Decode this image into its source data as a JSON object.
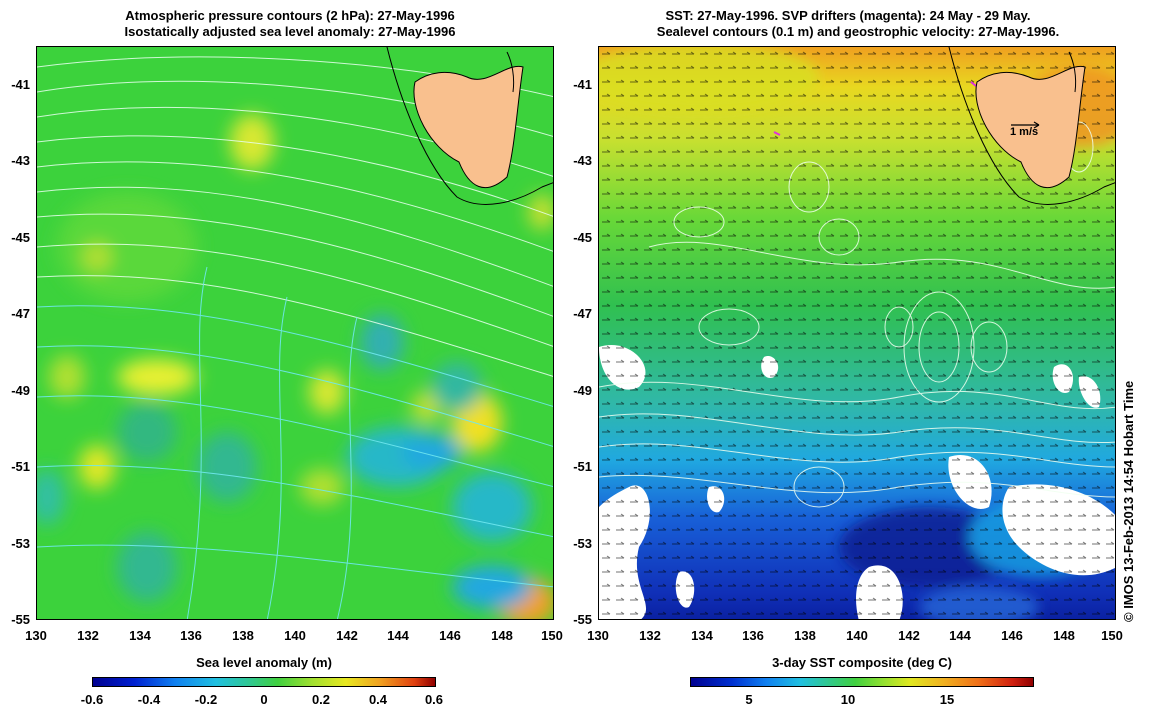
{
  "left_panel": {
    "title_line1": "Atmospheric pressure contours (2 hPa): 27-May-1996",
    "title_line2": "Isostatically adjusted sea level anomaly: 27-May-1996",
    "colorbar_title": "Sea level anomaly (m)",
    "colorbar_ticks": [
      "-0.6",
      "-0.4",
      "-0.2",
      "0",
      "0.2",
      "0.4",
      "0.6"
    ]
  },
  "right_panel": {
    "title_line1": "SST: 27-May-1996. SVP drifters (magenta): 24 May - 29 May.",
    "title_line2": "Sealevel contours (0.1 m) and geostrophic velocity: 27-May-1996.",
    "colorbar_title": "3-day SST composite (deg C)",
    "colorbar_ticks": [
      "5",
      "10",
      "15"
    ],
    "velocity_scale_label": "1 m/s"
  },
  "axes": {
    "y_ticks": [
      "-41",
      "-43",
      "-45",
      "-47",
      "-49",
      "-51",
      "-53",
      "-55"
    ],
    "x_ticks": [
      "130",
      "132",
      "134",
      "136",
      "138",
      "140",
      "142",
      "144",
      "146",
      "148",
      "150"
    ]
  },
  "credit": "© IMOS 13-Feb-2013 14:54 Hobart Time",
  "colors": {
    "land": "#f9c08e",
    "left_background": "#3cd23c",
    "sst_warm": "#f0a020",
    "sst_cold": "#1030c0"
  }
}
